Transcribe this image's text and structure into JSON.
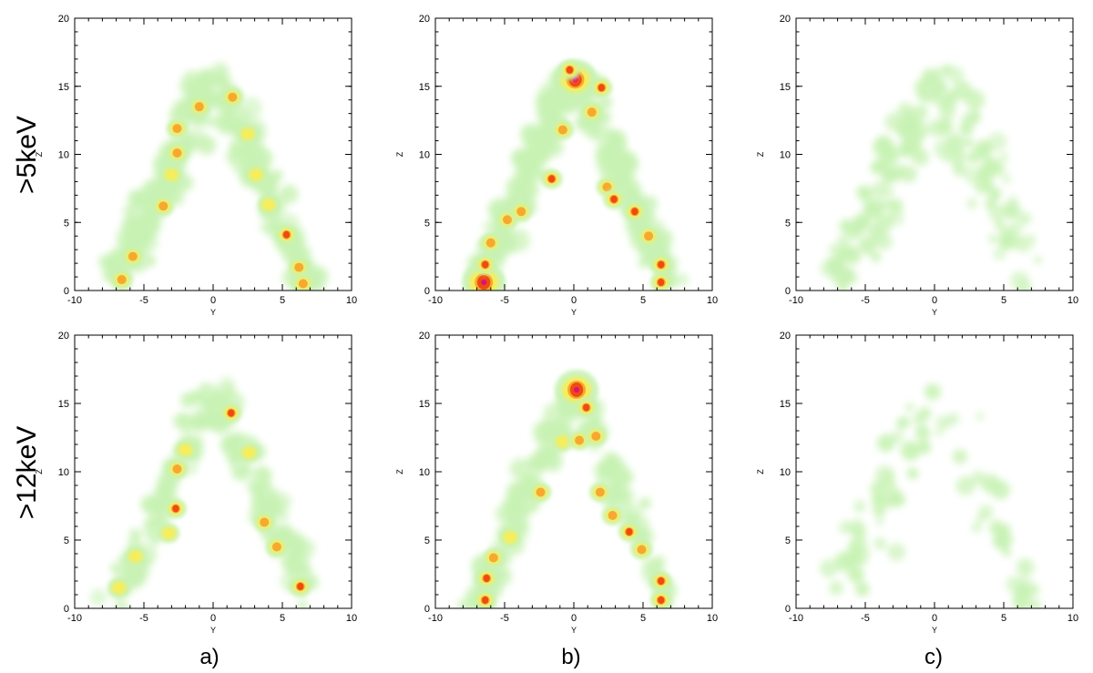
{
  "figure": {
    "row_labels": [
      ">5keV",
      ">12keV"
    ],
    "column_labels": [
      "a)",
      "b)",
      "c)"
    ]
  },
  "colors": {
    "low": "#c8f2b4",
    "mid": "#f6ee5a",
    "high": "#f04a10",
    "peak": "#d4147e"
  },
  "chart_data": [
    {
      "type": "heatmap",
      "row": 0,
      "col": 0,
      "xlabel": "Y",
      "ylabel": "Z",
      "xlim": [
        -10,
        10
      ],
      "ylim": [
        0,
        20
      ],
      "xticks": [
        "-10",
        "-5",
        "0",
        "5",
        "10"
      ],
      "yticks": [
        "0",
        "5",
        "10",
        "15",
        "20"
      ],
      "hotspots": [
        {
          "x": -6.6,
          "y": 0.8,
          "level": 2
        },
        {
          "x": -5.8,
          "y": 2.5,
          "level": 2
        },
        {
          "x": -3.6,
          "y": 6.2,
          "level": 2
        },
        {
          "x": -3.0,
          "y": 8.5,
          "level": 1
        },
        {
          "x": -2.6,
          "y": 10.1,
          "level": 2
        },
        {
          "x": -2.6,
          "y": 11.9,
          "level": 2
        },
        {
          "x": -1.0,
          "y": 13.5,
          "level": 2
        },
        {
          "x": 1.4,
          "y": 14.2,
          "level": 2
        },
        {
          "x": 2.5,
          "y": 11.5,
          "level": 1
        },
        {
          "x": 3.1,
          "y": 8.5,
          "level": 1
        },
        {
          "x": 4.0,
          "y": 6.3,
          "level": 1
        },
        {
          "x": 5.3,
          "y": 4.1,
          "level": 3
        },
        {
          "x": 6.2,
          "y": 1.7,
          "level": 2
        },
        {
          "x": 6.5,
          "y": 0.5,
          "level": 2
        }
      ]
    },
    {
      "type": "heatmap",
      "row": 0,
      "col": 1,
      "xlabel": "Y",
      "ylabel": "Z",
      "xlim": [
        -10,
        10
      ],
      "ylim": [
        0,
        20
      ],
      "xticks": [
        "-10",
        "-5",
        "0",
        "5",
        "10"
      ],
      "yticks": [
        "0",
        "5",
        "10",
        "15",
        "20"
      ],
      "hotspots": [
        {
          "x": -6.5,
          "y": 0.6,
          "level": 4
        },
        {
          "x": -6.4,
          "y": 1.9,
          "level": 3
        },
        {
          "x": -6.0,
          "y": 3.5,
          "level": 2
        },
        {
          "x": -4.8,
          "y": 5.2,
          "level": 2
        },
        {
          "x": -3.8,
          "y": 5.8,
          "level": 2
        },
        {
          "x": -1.6,
          "y": 8.2,
          "level": 3
        },
        {
          "x": -0.8,
          "y": 11.8,
          "level": 2
        },
        {
          "x": 0.1,
          "y": 15.5,
          "level": 4
        },
        {
          "x": -0.3,
          "y": 16.2,
          "level": 3
        },
        {
          "x": 2.0,
          "y": 14.9,
          "level": 3
        },
        {
          "x": 1.3,
          "y": 13.1,
          "level": 2
        },
        {
          "x": 2.4,
          "y": 7.6,
          "level": 2
        },
        {
          "x": 2.9,
          "y": 6.7,
          "level": 3
        },
        {
          "x": 4.4,
          "y": 5.8,
          "level": 3
        },
        {
          "x": 5.4,
          "y": 4.0,
          "level": 2
        },
        {
          "x": 6.3,
          "y": 1.9,
          "level": 3
        },
        {
          "x": 6.3,
          "y": 0.6,
          "level": 3
        }
      ]
    },
    {
      "type": "heatmap",
      "row": 0,
      "col": 2,
      "xlabel": "Y",
      "ylabel": "Z",
      "xlim": [
        -10,
        10
      ],
      "ylim": [
        0,
        20
      ],
      "xticks": [
        "-10",
        "-5",
        "0",
        "5",
        "10"
      ],
      "yticks": [
        "0",
        "5",
        "10",
        "15",
        "20"
      ],
      "hotspots": []
    },
    {
      "type": "heatmap",
      "row": 1,
      "col": 0,
      "xlabel": "Y",
      "ylabel": "Z",
      "xlim": [
        -10,
        10
      ],
      "ylim": [
        0,
        20
      ],
      "xticks": [
        "-10",
        "-5",
        "0",
        "5",
        "10"
      ],
      "yticks": [
        "0",
        "5",
        "10",
        "15",
        "20"
      ],
      "hotspots": [
        {
          "x": -6.8,
          "y": 1.5,
          "level": 1
        },
        {
          "x": -5.6,
          "y": 3.8,
          "level": 1
        },
        {
          "x": -3.2,
          "y": 5.5,
          "level": 1
        },
        {
          "x": -2.7,
          "y": 7.3,
          "level": 3
        },
        {
          "x": -2.6,
          "y": 10.2,
          "level": 2
        },
        {
          "x": -2.0,
          "y": 11.6,
          "level": 1
        },
        {
          "x": 1.3,
          "y": 14.3,
          "level": 3
        },
        {
          "x": 2.6,
          "y": 11.4,
          "level": 1
        },
        {
          "x": 3.7,
          "y": 6.3,
          "level": 2
        },
        {
          "x": 4.6,
          "y": 4.5,
          "level": 2
        },
        {
          "x": 6.3,
          "y": 1.6,
          "level": 3
        }
      ]
    },
    {
      "type": "heatmap",
      "row": 1,
      "col": 1,
      "xlabel": "Y",
      "ylabel": "Z",
      "xlim": [
        -10,
        10
      ],
      "ylim": [
        0,
        20
      ],
      "xticks": [
        "-10",
        "-5",
        "0",
        "5",
        "10"
      ],
      "yticks": [
        "0",
        "5",
        "10",
        "15",
        "20"
      ],
      "hotspots": [
        {
          "x": -6.4,
          "y": 0.6,
          "level": 3
        },
        {
          "x": -6.3,
          "y": 2.2,
          "level": 3
        },
        {
          "x": -5.8,
          "y": 3.7,
          "level": 2
        },
        {
          "x": -4.6,
          "y": 5.2,
          "level": 1
        },
        {
          "x": -2.4,
          "y": 8.5,
          "level": 2
        },
        {
          "x": -0.8,
          "y": 12.2,
          "level": 1
        },
        {
          "x": 0.2,
          "y": 16.0,
          "level": 4
        },
        {
          "x": 0.9,
          "y": 14.7,
          "level": 3
        },
        {
          "x": 0.4,
          "y": 12.3,
          "level": 2
        },
        {
          "x": 1.6,
          "y": 12.6,
          "level": 2
        },
        {
          "x": 1.9,
          "y": 8.5,
          "level": 2
        },
        {
          "x": 2.8,
          "y": 6.8,
          "level": 2
        },
        {
          "x": 4.0,
          "y": 5.6,
          "level": 3
        },
        {
          "x": 4.9,
          "y": 4.3,
          "level": 2
        },
        {
          "x": 6.3,
          "y": 2.0,
          "level": 3
        },
        {
          "x": 6.3,
          "y": 0.6,
          "level": 3
        }
      ]
    },
    {
      "type": "heatmap",
      "row": 1,
      "col": 2,
      "xlabel": "Y",
      "ylabel": "Z",
      "xlim": [
        -10,
        10
      ],
      "ylim": [
        0,
        20
      ],
      "xticks": [
        "-10",
        "-5",
        "0",
        "5",
        "10"
      ],
      "yticks": [
        "0",
        "5",
        "10",
        "15",
        "20"
      ],
      "hotspots": []
    }
  ]
}
